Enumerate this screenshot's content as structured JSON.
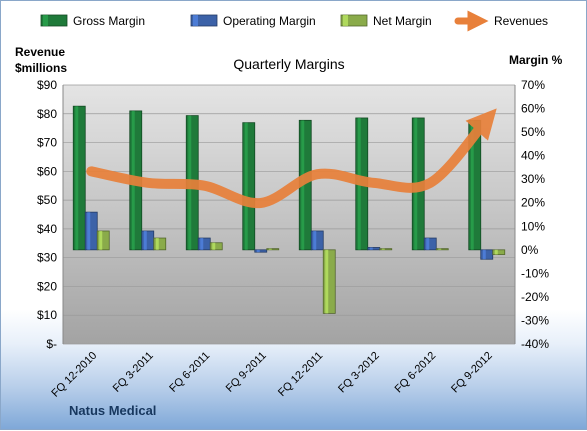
{
  "chart_data": {
    "type": "bar",
    "title": "Quarterly Margins",
    "ylabel": "Revenue $millions",
    "ylabel_lines": [
      "Revenue",
      "$millions"
    ],
    "y2label": "Margin %",
    "footer": "Natus Medical",
    "categories": [
      "FQ 12-2010",
      "FQ 3-2011",
      "FQ 6-2011",
      "FQ 9-2011",
      "FQ 12-2011",
      "FQ 3-2012",
      "FQ 6-2012",
      "FQ 9-2012"
    ],
    "ylim": [
      0,
      90
    ],
    "yticks": [
      0,
      10,
      20,
      30,
      40,
      50,
      60,
      70,
      80,
      90
    ],
    "ytick_labels": [
      "$-",
      "$10",
      "$20",
      "$30",
      "$40",
      "$50",
      "$60",
      "$70",
      "$80",
      "$90"
    ],
    "y2lim": [
      -40,
      70
    ],
    "y2ticks": [
      -40,
      -30,
      -20,
      -10,
      0,
      10,
      20,
      30,
      40,
      50,
      60,
      70
    ],
    "y2tick_labels": [
      "-40%",
      "-30%",
      "-20%",
      "-10%",
      "0%",
      "10%",
      "20%",
      "30%",
      "40%",
      "50%",
      "60%",
      "70%"
    ],
    "series": [
      {
        "name": "Gross Margin",
        "axis": "right",
        "type": "bar",
        "color": "#1f7a3a",
        "values": [
          61,
          59,
          57,
          54,
          55,
          56,
          56,
          55
        ]
      },
      {
        "name": "Operating Margin",
        "axis": "right",
        "type": "bar",
        "color": "#3c62a8",
        "values": [
          16,
          8,
          5,
          -1,
          8,
          1,
          5,
          -4
        ]
      },
      {
        "name": "Net Margin",
        "axis": "right",
        "type": "bar",
        "color": "#8aab4a",
        "values": [
          8,
          5,
          3,
          0.5,
          -27,
          0.5,
          0.5,
          -2
        ]
      },
      {
        "name": "Revenues",
        "axis": "left",
        "type": "line",
        "color": "#e8803a",
        "values": [
          60,
          56,
          55,
          49,
          59,
          56,
          56,
          78
        ]
      }
    ],
    "legend_position": "top",
    "grid": true
  }
}
